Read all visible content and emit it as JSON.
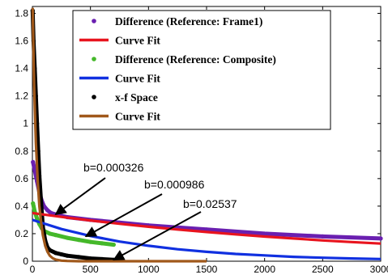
{
  "chart_data": {
    "type": "scatter",
    "title": "",
    "xlabel": "",
    "ylabel": "",
    "xlim": [
      0,
      3000
    ],
    "ylim": [
      0,
      1.85
    ],
    "xticks": [
      0,
      500,
      1000,
      1500,
      2000,
      2500,
      3000
    ],
    "yticks": [
      0,
      0.2,
      0.4,
      0.6,
      0.8,
      1,
      1.2,
      1.4,
      1.6,
      1.8
    ],
    "xtick_labels": [
      "0",
      "500",
      "1000",
      "1500",
      "2000",
      "2500",
      "3000"
    ],
    "ytick_labels": [
      "0",
      "0.2",
      "0.4",
      "0.6",
      "0.8",
      "1",
      "1.2",
      "1.4",
      "1.6",
      "1.8"
    ],
    "grid": false,
    "legend": "top-right",
    "series": [
      {
        "name": "Difference (Reference: Frame1)",
        "kind": "points",
        "color": "#6a1fb0",
        "x": [
          5,
          20,
          40,
          60,
          80,
          100,
          130,
          160,
          200,
          300,
          500,
          750,
          1000,
          1500,
          2000,
          2500,
          3000
        ],
        "y": [
          0.72,
          0.66,
          0.58,
          0.5,
          0.44,
          0.4,
          0.37,
          0.35,
          0.34,
          0.32,
          0.3,
          0.28,
          0.26,
          0.23,
          0.2,
          0.18,
          0.165
        ]
      },
      {
        "name": "Curve Fit",
        "kind": "line",
        "color": "#e8141e",
        "x": [
          0,
          250,
          500,
          750,
          1000,
          1250,
          1500,
          1750,
          2000,
          2250,
          2500,
          2750,
          3000
        ],
        "y": [
          0.35,
          0.322,
          0.296,
          0.272,
          0.25,
          0.23,
          0.212,
          0.195,
          0.179,
          0.165,
          0.151,
          0.139,
          0.128
        ]
      },
      {
        "name": "Difference (Reference: Composite)",
        "kind": "points",
        "color": "#45b82a",
        "x": [
          5,
          20,
          40,
          60,
          80,
          100,
          150,
          200,
          300,
          400,
          500,
          600,
          700
        ],
        "y": [
          0.42,
          0.36,
          0.31,
          0.27,
          0.24,
          0.22,
          0.2,
          0.19,
          0.17,
          0.155,
          0.14,
          0.13,
          0.12
        ]
      },
      {
        "name": "Curve Fit",
        "kind": "line",
        "color": "#1030e0",
        "x": [
          0,
          250,
          500,
          750,
          1000,
          1250,
          1500,
          1750,
          2000,
          2250,
          2500,
          2750,
          3000
        ],
        "y": [
          0.3,
          0.234,
          0.183,
          0.143,
          0.112,
          0.087,
          0.068,
          0.053,
          0.042,
          0.032,
          0.025,
          0.02,
          0.016
        ]
      },
      {
        "name": "x-f Space",
        "kind": "points",
        "color": "#000000",
        "x": [
          2,
          10,
          20,
          30,
          40,
          50,
          60,
          75,
          90,
          110,
          130,
          150,
          200,
          250,
          300,
          400,
          500,
          600,
          700
        ],
        "y": [
          1.82,
          1.6,
          1.4,
          1.2,
          1.0,
          0.8,
          0.62,
          0.42,
          0.25,
          0.15,
          0.1,
          0.08,
          0.06,
          0.05,
          0.04,
          0.03,
          0.02,
          0.015,
          0.01
        ]
      },
      {
        "name": "Curve Fit",
        "kind": "line",
        "color": "#a0581a",
        "x": [
          2,
          15,
          30,
          45,
          60,
          75,
          90,
          110,
          130,
          150,
          175,
          200,
          250,
          300,
          400,
          600,
          1000,
          1500
        ],
        "y": [
          1.84,
          1.28,
          0.86,
          0.59,
          0.4,
          0.28,
          0.19,
          0.112,
          0.069,
          0.04,
          0.022,
          0.012,
          0.004,
          0.0015,
          0.0002,
          0,
          0,
          0
        ]
      }
    ],
    "annotations": [
      {
        "text": "b=0.000326",
        "target_x": 200,
        "target_y": 0.34
      },
      {
        "text": "b=0.000986",
        "target_x": 460,
        "target_y": 0.18
      },
      {
        "text": "b=0.02537",
        "target_x": 700,
        "target_y": 0.01
      }
    ]
  }
}
